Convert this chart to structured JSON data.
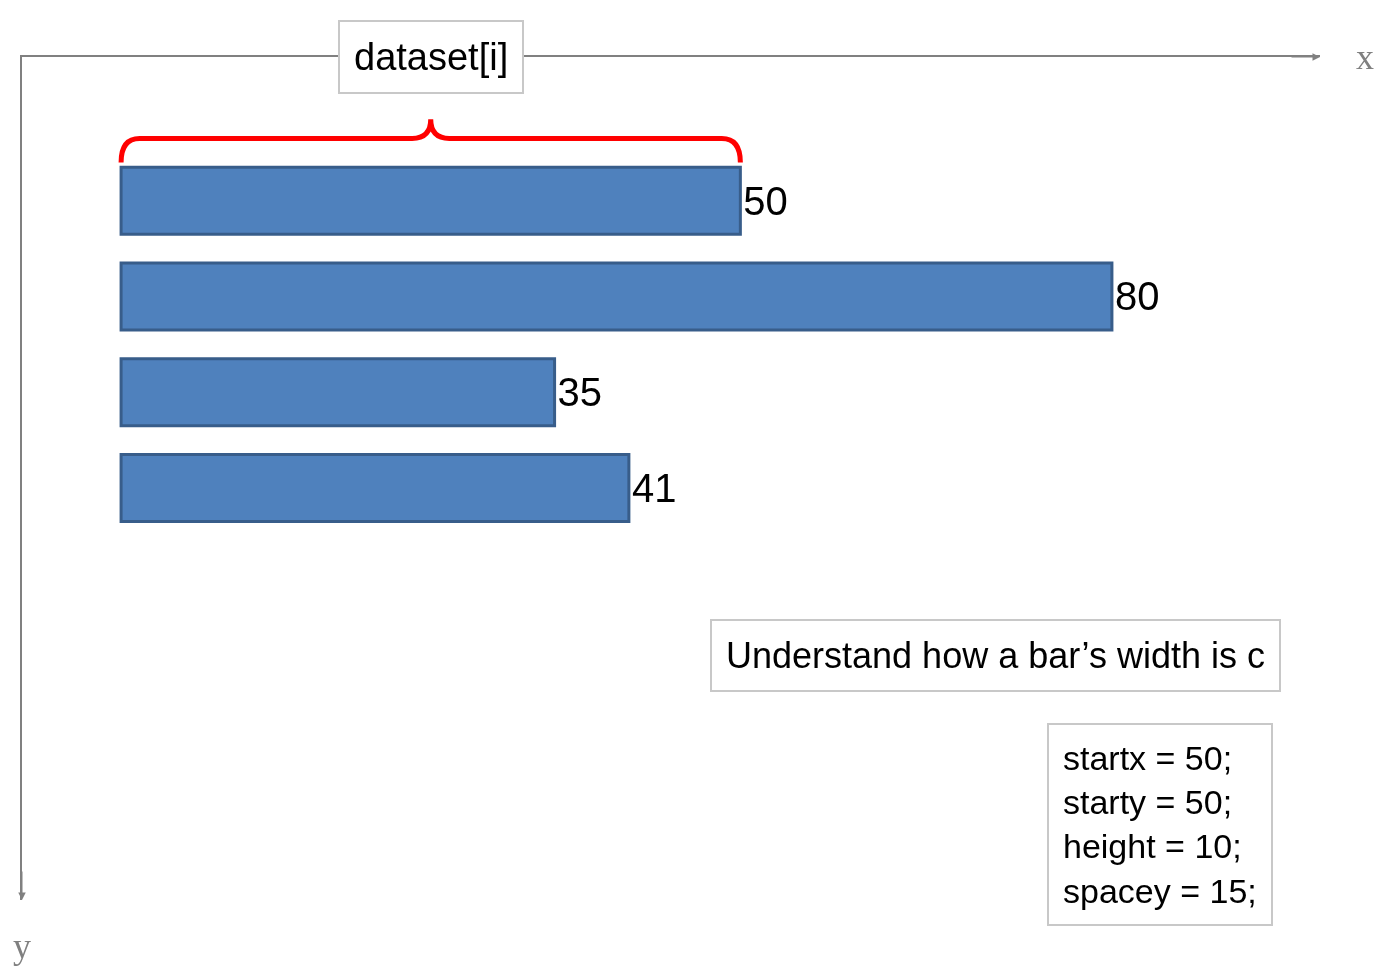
{
  "chart_data": {
    "type": "bar",
    "orientation": "horizontal",
    "categories": [
      null,
      null,
      null,
      null
    ],
    "values": [
      50,
      80,
      35,
      41
    ],
    "color": "#4f81bd",
    "data_labels": true,
    "tick_labels": false,
    "legend": false,
    "annotations": [
      "x",
      "y",
      "dataset[i]",
      "Understand how a bar’s width is c",
      "startx = 50;\nstarty = 50;\nheight = 10;\nspacey = 15;"
    ]
  }
}
